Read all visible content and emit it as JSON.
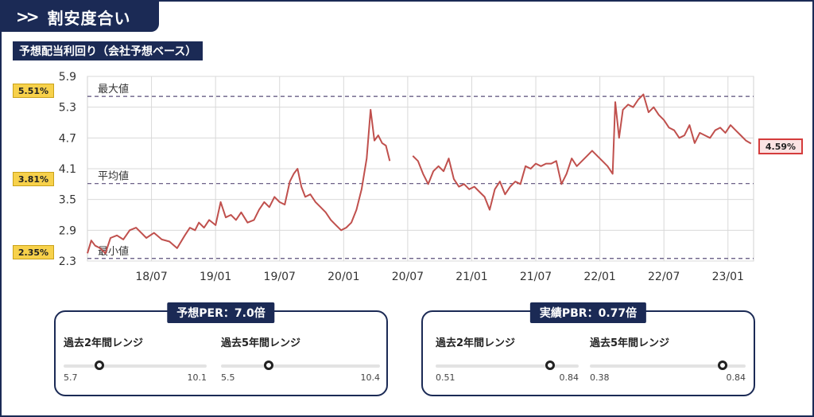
{
  "header": {
    "title": "割安度合い",
    "chevron_icon": "double-chevron-right-icon"
  },
  "subtitle": "予想配当利回り（会社予想ベース）",
  "chart_data": {
    "type": "line",
    "title": "予想配当利回り（会社予想ベース）",
    "y_ticks": [
      "5.9",
      "5.3",
      "4.7",
      "4.1",
      "3.5",
      "2.9",
      "2.3"
    ],
    "ylim": [
      2.3,
      5.9
    ],
    "x_ticks": [
      "18/07",
      "19/01",
      "19/07",
      "20/01",
      "20/07",
      "21/01",
      "21/07",
      "22/01",
      "22/07",
      "23/01"
    ],
    "xlim": [
      2018.0,
      2023.2
    ],
    "grid": true,
    "color": "#c0504d",
    "reference_lines": [
      {
        "label": "最大値",
        "value": 5.51,
        "badge": "5.51%"
      },
      {
        "label": "平均値",
        "value": 3.81,
        "badge": "3.81%"
      },
      {
        "label": "最小値",
        "value": 2.35,
        "badge": "2.35%"
      }
    ],
    "current": {
      "value": 4.59,
      "badge": "4.59%"
    },
    "series": [
      {
        "segments": [
          [
            [
              2018.0,
              2.45
            ],
            [
              2018.03,
              2.7
            ],
            [
              2018.06,
              2.6
            ],
            [
              2018.1,
              2.55
            ],
            [
              2018.14,
              2.45
            ],
            [
              2018.18,
              2.75
            ],
            [
              2018.23,
              2.8
            ],
            [
              2018.28,
              2.72
            ],
            [
              2018.33,
              2.9
            ],
            [
              2018.38,
              2.95
            ],
            [
              2018.42,
              2.85
            ],
            [
              2018.46,
              2.75
            ],
            [
              2018.52,
              2.85
            ],
            [
              2018.58,
              2.72
            ],
            [
              2018.64,
              2.68
            ],
            [
              2018.7,
              2.55
            ],
            [
              2018.76,
              2.8
            ],
            [
              2018.8,
              2.95
            ],
            [
              2018.84,
              2.9
            ],
            [
              2018.87,
              3.05
            ],
            [
              2018.91,
              2.95
            ],
            [
              2018.95,
              3.1
            ],
            [
              2019.0,
              3.0
            ],
            [
              2019.04,
              3.45
            ],
            [
              2019.08,
              3.15
            ],
            [
              2019.12,
              3.2
            ],
            [
              2019.16,
              3.1
            ],
            [
              2019.2,
              3.25
            ],
            [
              2019.25,
              3.05
            ],
            [
              2019.3,
              3.1
            ],
            [
              2019.34,
              3.3
            ],
            [
              2019.38,
              3.45
            ],
            [
              2019.42,
              3.35
            ],
            [
              2019.46,
              3.55
            ],
            [
              2019.5,
              3.45
            ],
            [
              2019.54,
              3.4
            ],
            [
              2019.58,
              3.85
            ],
            [
              2019.61,
              4.0
            ],
            [
              2019.64,
              4.1
            ],
            [
              2019.67,
              3.75
            ],
            [
              2019.7,
              3.55
            ],
            [
              2019.74,
              3.6
            ],
            [
              2019.78,
              3.45
            ],
            [
              2019.82,
              3.35
            ],
            [
              2019.86,
              3.25
            ],
            [
              2019.9,
              3.1
            ],
            [
              2019.94,
              3.0
            ],
            [
              2019.98,
              2.9
            ],
            [
              2020.02,
              2.95
            ],
            [
              2020.06,
              3.05
            ],
            [
              2020.1,
              3.3
            ],
            [
              2020.14,
              3.7
            ],
            [
              2020.18,
              4.3
            ],
            [
              2020.21,
              5.25
            ],
            [
              2020.24,
              4.65
            ],
            [
              2020.27,
              4.75
            ],
            [
              2020.3,
              4.6
            ],
            [
              2020.33,
              4.55
            ],
            [
              2020.36,
              4.25
            ]
          ],
          [
            [
              2020.54,
              4.35
            ],
            [
              2020.58,
              4.25
            ],
            [
              2020.62,
              4.0
            ],
            [
              2020.66,
              3.8
            ],
            [
              2020.7,
              4.05
            ],
            [
              2020.74,
              4.15
            ],
            [
              2020.78,
              4.05
            ],
            [
              2020.82,
              4.3
            ],
            [
              2020.86,
              3.9
            ],
            [
              2020.9,
              3.75
            ],
            [
              2020.94,
              3.8
            ],
            [
              2020.98,
              3.7
            ],
            [
              2021.02,
              3.75
            ],
            [
              2021.06,
              3.65
            ],
            [
              2021.1,
              3.55
            ],
            [
              2021.14,
              3.3
            ],
            [
              2021.18,
              3.7
            ],
            [
              2021.22,
              3.85
            ],
            [
              2021.26,
              3.6
            ],
            [
              2021.3,
              3.75
            ],
            [
              2021.34,
              3.85
            ],
            [
              2021.38,
              3.8
            ],
            [
              2021.42,
              4.15
            ],
            [
              2021.46,
              4.1
            ],
            [
              2021.5,
              4.2
            ],
            [
              2021.54,
              4.15
            ],
            [
              2021.58,
              4.2
            ],
            [
              2021.62,
              4.2
            ],
            [
              2021.66,
              4.25
            ],
            [
              2021.7,
              3.8
            ],
            [
              2021.74,
              4.0
            ],
            [
              2021.78,
              4.3
            ],
            [
              2021.82,
              4.15
            ],
            [
              2021.86,
              4.25
            ],
            [
              2021.9,
              4.35
            ],
            [
              2021.94,
              4.45
            ],
            [
              2021.98,
              4.35
            ],
            [
              2022.02,
              4.25
            ],
            [
              2022.06,
              4.15
            ],
            [
              2022.1,
              4.0
            ],
            [
              2022.12,
              5.4
            ],
            [
              2022.15,
              4.7
            ],
            [
              2022.18,
              5.25
            ],
            [
              2022.22,
              5.35
            ],
            [
              2022.26,
              5.3
            ],
            [
              2022.3,
              5.45
            ],
            [
              2022.34,
              5.55
            ],
            [
              2022.38,
              5.2
            ],
            [
              2022.42,
              5.3
            ],
            [
              2022.46,
              5.15
            ],
            [
              2022.5,
              5.05
            ],
            [
              2022.54,
              4.9
            ],
            [
              2022.58,
              4.85
            ],
            [
              2022.62,
              4.7
            ],
            [
              2022.66,
              4.75
            ],
            [
              2022.7,
              4.95
            ],
            [
              2022.74,
              4.6
            ],
            [
              2022.78,
              4.8
            ],
            [
              2022.82,
              4.75
            ],
            [
              2022.86,
              4.7
            ],
            [
              2022.9,
              4.85
            ],
            [
              2022.94,
              4.9
            ],
            [
              2022.98,
              4.8
            ],
            [
              2023.02,
              4.95
            ],
            [
              2023.06,
              4.85
            ],
            [
              2023.1,
              4.75
            ],
            [
              2023.14,
              4.65
            ],
            [
              2023.18,
              4.59
            ]
          ]
        ]
      }
    ]
  },
  "panels": [
    {
      "title": "予想PER：7.0倍",
      "ranges": [
        {
          "label": "過去2年間レンジ",
          "min": "5.7",
          "max": "10.1",
          "position": 0.25
        },
        {
          "label": "過去5年間レンジ",
          "min": "5.5",
          "max": "10.4",
          "position": 0.3
        }
      ]
    },
    {
      "title": "実績PBR：0.77倍",
      "ranges": [
        {
          "label": "過去2年間レンジ",
          "min": "0.51",
          "max": "0.84",
          "position": 0.8
        },
        {
          "label": "過去5年間レンジ",
          "min": "0.38",
          "max": "0.84",
          "position": 0.85
        }
      ]
    }
  ]
}
